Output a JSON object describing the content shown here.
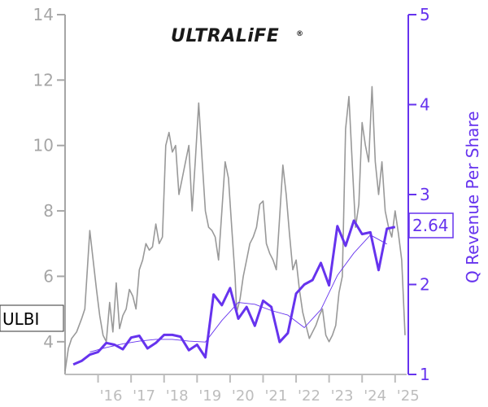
{
  "colors": {
    "price": "#999999",
    "revenue": "#6633ee",
    "trend": "#6633ee",
    "left_axis": "#a6a6a6",
    "right_axis": "#6633ee",
    "x_axis": "#bdbdbd"
  },
  "logo": {
    "text": "ULTRALiFE",
    "mark": "®"
  },
  "ticker": "ULBI",
  "current_value_badge": "2.64",
  "chart_data": {
    "type": "line",
    "xlabel": "",
    "ylabel_left": "",
    "ylabel_right": "Q Revenue Per Share",
    "x_range": [
      2015.0,
      2025.35
    ],
    "y_left_range": [
      3.0,
      14.0
    ],
    "y_right_range": [
      1.0,
      5.0
    ],
    "x_tick_labels": [
      "'16",
      "'17",
      "'18",
      "'19",
      "'20",
      "'21",
      "'22",
      "'23",
      "'24",
      "'25"
    ],
    "x_tick_values": [
      2016,
      2017,
      2018,
      2019,
      2020,
      2021,
      2022,
      2023,
      2024,
      2025
    ],
    "y_left_ticks": [
      4,
      6,
      8,
      10,
      12,
      14
    ],
    "y_right_ticks": [
      1,
      2,
      3,
      4,
      5
    ],
    "grid": false,
    "legend": "none",
    "series": [
      {
        "axis": "left",
        "style": "price",
        "x": [
          2015.0,
          2015.1,
          2015.2,
          2015.35,
          2015.5,
          2015.6,
          2015.75,
          2015.85,
          2015.95,
          2016.05,
          2016.15,
          2016.25,
          2016.35,
          2016.45,
          2016.55,
          2016.65,
          2016.75,
          2016.85,
          2016.95,
          2017.05,
          2017.15,
          2017.25,
          2017.35,
          2017.45,
          2017.55,
          2017.65,
          2017.75,
          2017.85,
          2017.95,
          2018.05,
          2018.15,
          2018.25,
          2018.35,
          2018.45,
          2018.55,
          2018.65,
          2018.75,
          2018.85,
          2018.95,
          2019.05,
          2019.15,
          2019.25,
          2019.35,
          2019.45,
          2019.55,
          2019.65,
          2019.75,
          2019.85,
          2019.95,
          2020.05,
          2020.15,
          2020.2,
          2020.3,
          2020.4,
          2020.5,
          2020.6,
          2020.7,
          2020.8,
          2020.9,
          2021.0,
          2021.1,
          2021.2,
          2021.3,
          2021.4,
          2021.5,
          2021.6,
          2021.7,
          2021.8,
          2021.9,
          2022.0,
          2022.1,
          2022.2,
          2022.3,
          2022.4,
          2022.5,
          2022.6,
          2022.7,
          2022.8,
          2022.9,
          2023.0,
          2023.1,
          2023.2,
          2023.3,
          2023.4,
          2023.5,
          2023.6,
          2023.7,
          2023.8,
          2023.9,
          2024.0,
          2024.1,
          2024.2,
          2024.3,
          2024.4,
          2024.5,
          2024.6,
          2024.7,
          2024.8,
          2024.9,
          2025.0,
          2025.1,
          2025.2,
          2025.3
        ],
        "y": [
          3.1,
          3.8,
          4.1,
          4.3,
          4.7,
          5.0,
          7.4,
          6.5,
          5.6,
          4.8,
          4.2,
          4.0,
          5.2,
          4.3,
          5.8,
          4.4,
          4.8,
          5.0,
          5.6,
          5.4,
          5.0,
          6.2,
          6.5,
          7.0,
          6.8,
          6.9,
          7.6,
          7.0,
          7.2,
          10.0,
          10.4,
          9.8,
          10.0,
          8.5,
          9.0,
          9.5,
          10.0,
          8.0,
          9.6,
          11.3,
          9.6,
          8.0,
          7.5,
          7.4,
          7.2,
          6.5,
          8.0,
          9.5,
          9.0,
          7.5,
          6.0,
          4.9,
          5.3,
          6.0,
          6.5,
          7.0,
          7.2,
          7.5,
          8.2,
          8.3,
          7.0,
          6.7,
          6.5,
          6.2,
          7.8,
          9.4,
          8.5,
          7.3,
          6.2,
          6.5,
          5.6,
          4.9,
          4.5,
          4.1,
          4.3,
          4.5,
          4.8,
          5.0,
          4.2,
          4.0,
          4.2,
          4.5,
          5.5,
          6.0,
          10.5,
          11.5,
          9.5,
          7.5,
          8.2,
          10.7,
          10.0,
          9.5,
          11.8,
          9.5,
          8.5,
          9.5,
          8.0,
          7.5,
          7.2,
          8.0,
          7.3,
          6.5,
          4.2
        ]
      },
      {
        "axis": "right",
        "style": "revenue",
        "name": "",
        "x": [
          2015.25,
          2015.5,
          2015.75,
          2016.0,
          2016.25,
          2016.5,
          2016.75,
          2017.0,
          2017.25,
          2017.5,
          2017.75,
          2018.0,
          2018.25,
          2018.5,
          2018.75,
          2019.0,
          2019.25,
          2019.5,
          2019.75,
          2020.0,
          2020.25,
          2020.5,
          2020.75,
          2021.0,
          2021.25,
          2021.5,
          2021.75,
          2022.0,
          2022.25,
          2022.5,
          2022.75,
          2023.0,
          2023.25,
          2023.5,
          2023.75,
          2024.0,
          2024.25,
          2024.5,
          2024.75,
          2025.0
        ],
        "y": [
          1.11,
          1.15,
          1.22,
          1.25,
          1.35,
          1.33,
          1.28,
          1.41,
          1.43,
          1.29,
          1.35,
          1.44,
          1.44,
          1.42,
          1.27,
          1.33,
          1.19,
          1.89,
          1.77,
          1.96,
          1.62,
          1.75,
          1.54,
          1.82,
          1.75,
          1.36,
          1.46,
          1.9,
          2.0,
          2.05,
          2.24,
          1.99,
          2.65,
          2.43,
          2.71,
          2.56,
          2.58,
          2.16,
          2.62,
          2.64
        ]
      },
      {
        "axis": "right",
        "style": "trend",
        "name": "",
        "x": [
          2015.75,
          2016.25,
          2016.75,
          2017.25,
          2017.75,
          2018.25,
          2018.75,
          2019.25,
          2019.75,
          2020.25,
          2020.75,
          2021.25,
          2021.75,
          2022.25,
          2022.75,
          2023.25,
          2023.75,
          2024.25,
          2024.75
        ],
        "y": [
          1.25,
          1.3,
          1.34,
          1.37,
          1.39,
          1.39,
          1.37,
          1.36,
          1.6,
          1.8,
          1.78,
          1.71,
          1.66,
          1.52,
          1.72,
          2.1,
          2.35,
          2.55,
          2.45
        ]
      }
    ]
  }
}
